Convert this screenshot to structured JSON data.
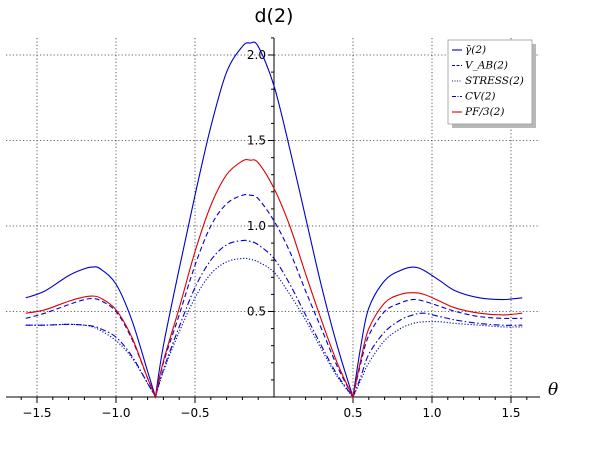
{
  "chart_data": {
    "type": "line",
    "title": "d(2)",
    "xlabel": "θ",
    "ylabel": "",
    "xlim": [
      -1.6,
      1.6
    ],
    "ylim": [
      0,
      2.1
    ],
    "grid": true,
    "legend_placement": "top-right",
    "x_ticks": [
      -1.5,
      -1.0,
      -0.5,
      0.5,
      1.0,
      1.5
    ],
    "x_tick_labels": [
      "−1.5",
      "−1.0",
      "−0.5",
      "0.5",
      "1.0",
      "1.5"
    ],
    "y_ticks": [
      0.5,
      1.0,
      1.5,
      2.0
    ],
    "y_tick_labels": [
      "0.5",
      "1.0",
      "1.5",
      "2.0"
    ],
    "series": [
      {
        "name": "γ̄(2)",
        "color": "#0000cc",
        "style": "solid",
        "x": [
          -1.571,
          -1.45,
          -1.3,
          -1.2,
          -1.15,
          -1.1,
          -1.0,
          -0.9,
          -0.8,
          -0.75,
          -0.7,
          -0.6,
          -0.5,
          -0.4,
          -0.3,
          -0.2,
          -0.15,
          -0.1,
          0.0,
          0.1,
          0.2,
          0.3,
          0.4,
          0.5,
          0.55,
          0.6,
          0.7,
          0.8,
          0.88,
          0.95,
          1.05,
          1.15,
          1.3,
          1.45,
          1.571
        ],
        "y": [
          0.58,
          0.62,
          0.71,
          0.75,
          0.76,
          0.75,
          0.66,
          0.45,
          0.15,
          0.0,
          0.3,
          0.75,
          1.18,
          1.58,
          1.9,
          2.05,
          2.07,
          2.05,
          1.82,
          1.45,
          1.05,
          0.65,
          0.3,
          0.0,
          0.3,
          0.52,
          0.68,
          0.74,
          0.76,
          0.74,
          0.68,
          0.62,
          0.58,
          0.57,
          0.58
        ]
      },
      {
        "name": "V_AB(2)",
        "color": "#0000cc",
        "style": "dashed",
        "x": [
          -1.571,
          -1.45,
          -1.3,
          -1.2,
          -1.15,
          -1.1,
          -1.0,
          -0.9,
          -0.8,
          -0.75,
          -0.7,
          -0.6,
          -0.5,
          -0.4,
          -0.3,
          -0.2,
          -0.15,
          -0.1,
          0.0,
          0.1,
          0.2,
          0.3,
          0.4,
          0.5,
          0.55,
          0.6,
          0.7,
          0.8,
          0.88,
          0.95,
          1.05,
          1.15,
          1.3,
          1.45,
          1.571
        ],
        "y": [
          0.46,
          0.49,
          0.54,
          0.57,
          0.575,
          0.565,
          0.5,
          0.34,
          0.11,
          0.0,
          0.2,
          0.48,
          0.77,
          1.0,
          1.13,
          1.18,
          1.18,
          1.16,
          1.03,
          0.85,
          0.62,
          0.4,
          0.18,
          0.0,
          0.2,
          0.36,
          0.5,
          0.55,
          0.57,
          0.56,
          0.53,
          0.5,
          0.47,
          0.46,
          0.46
        ]
      },
      {
        "name": "STRESS(2)",
        "color": "#0000cc",
        "style": "dotted",
        "x": [
          -1.571,
          -1.45,
          -1.3,
          -1.2,
          -1.15,
          -1.1,
          -1.0,
          -0.9,
          -0.8,
          -0.75,
          -0.7,
          -0.6,
          -0.5,
          -0.4,
          -0.3,
          -0.2,
          -0.15,
          -0.1,
          0.0,
          0.1,
          0.2,
          0.3,
          0.4,
          0.5,
          0.55,
          0.6,
          0.7,
          0.8,
          0.88,
          0.95,
          1.05,
          1.15,
          1.3,
          1.45,
          1.571
        ],
        "y": [
          0.42,
          0.42,
          0.425,
          0.42,
          0.41,
          0.39,
          0.33,
          0.23,
          0.08,
          0.0,
          0.15,
          0.38,
          0.58,
          0.72,
          0.79,
          0.81,
          0.805,
          0.79,
          0.73,
          0.6,
          0.45,
          0.28,
          0.12,
          0.0,
          0.1,
          0.2,
          0.33,
          0.4,
          0.43,
          0.44,
          0.44,
          0.43,
          0.42,
          0.41,
          0.41
        ]
      },
      {
        "name": "CV(2)",
        "color": "#0000cc",
        "style": "dashdot",
        "x": [
          -1.571,
          -1.45,
          -1.3,
          -1.2,
          -1.15,
          -1.1,
          -1.0,
          -0.9,
          -0.8,
          -0.75,
          -0.7,
          -0.6,
          -0.5,
          -0.4,
          -0.3,
          -0.2,
          -0.15,
          -0.1,
          0.0,
          0.1,
          0.2,
          0.3,
          0.4,
          0.5,
          0.55,
          0.6,
          0.7,
          0.8,
          0.88,
          0.95,
          1.05,
          1.15,
          1.3,
          1.45,
          1.571
        ],
        "y": [
          0.42,
          0.42,
          0.425,
          0.42,
          0.415,
          0.4,
          0.35,
          0.24,
          0.08,
          0.0,
          0.16,
          0.41,
          0.64,
          0.8,
          0.89,
          0.915,
          0.91,
          0.89,
          0.81,
          0.66,
          0.48,
          0.3,
          0.13,
          0.0,
          0.12,
          0.25,
          0.38,
          0.45,
          0.48,
          0.49,
          0.47,
          0.45,
          0.43,
          0.42,
          0.42
        ]
      },
      {
        "name": "PF/3(2)",
        "color": "#dd0000",
        "style": "solid",
        "x": [
          -1.571,
          -1.45,
          -1.3,
          -1.2,
          -1.15,
          -1.1,
          -1.0,
          -0.9,
          -0.8,
          -0.75,
          -0.7,
          -0.6,
          -0.5,
          -0.4,
          -0.3,
          -0.2,
          -0.15,
          -0.1,
          0.0,
          0.1,
          0.2,
          0.3,
          0.4,
          0.5,
          0.55,
          0.6,
          0.7,
          0.8,
          0.88,
          0.95,
          1.05,
          1.15,
          1.3,
          1.45,
          1.571
        ],
        "y": [
          0.49,
          0.51,
          0.56,
          0.585,
          0.59,
          0.58,
          0.51,
          0.35,
          0.11,
          0.0,
          0.21,
          0.52,
          0.85,
          1.12,
          1.3,
          1.38,
          1.385,
          1.37,
          1.22,
          1.0,
          0.72,
          0.45,
          0.2,
          0.0,
          0.22,
          0.4,
          0.55,
          0.6,
          0.61,
          0.6,
          0.56,
          0.52,
          0.49,
          0.48,
          0.49
        ]
      }
    ]
  }
}
